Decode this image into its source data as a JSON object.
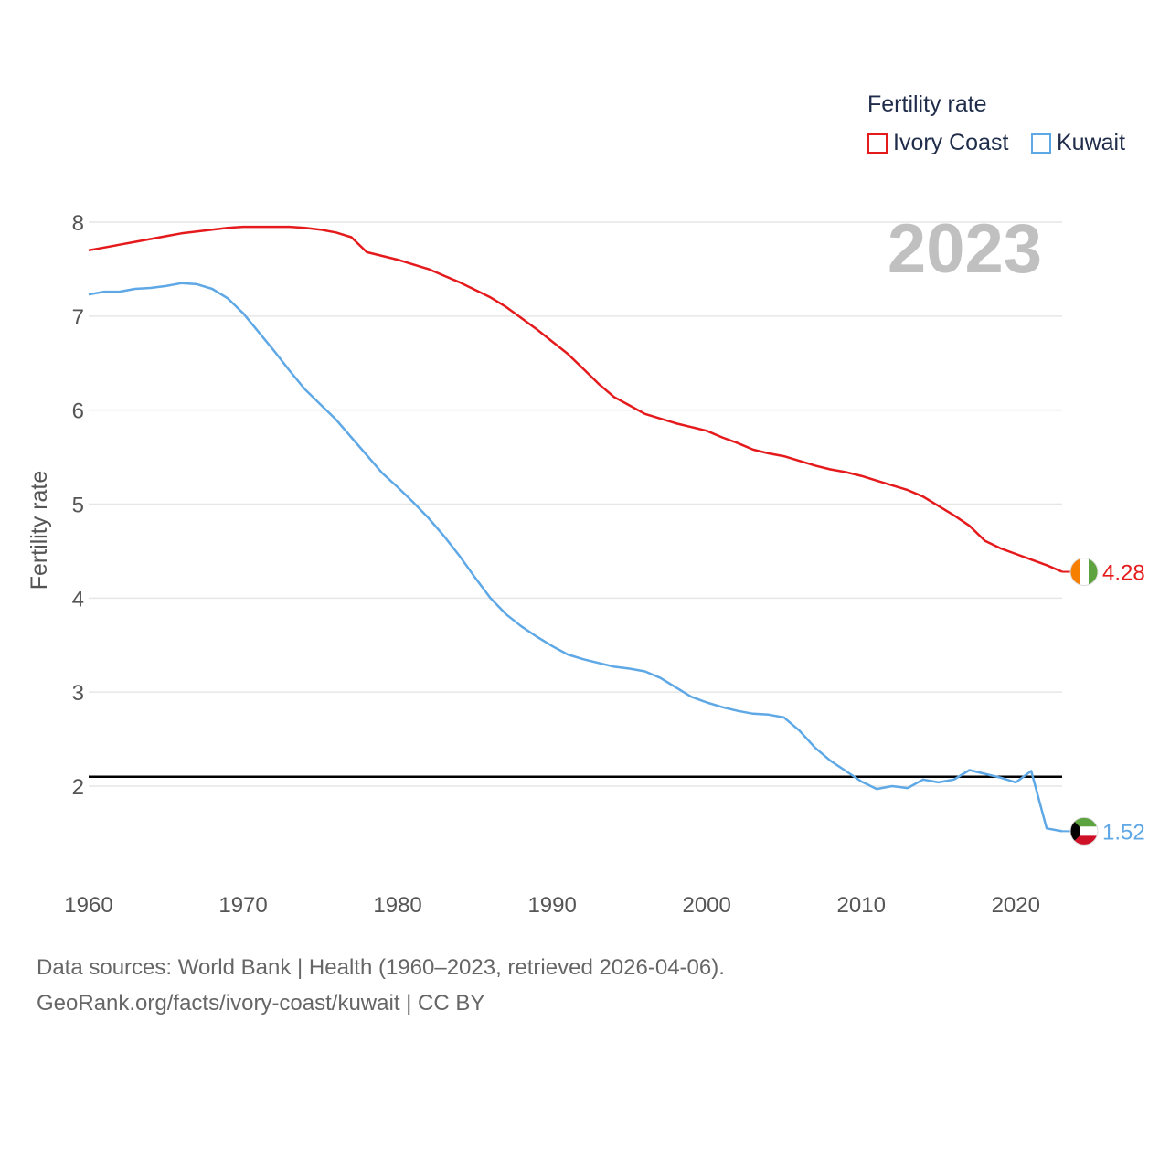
{
  "legend": {
    "title": "Fertility rate",
    "items": [
      {
        "label": "Ivory Coast",
        "color": "#e41a1c"
      },
      {
        "label": "Kuwait",
        "color": "#5fa8e6"
      }
    ]
  },
  "source": {
    "line1": "Data sources: World Bank | Health (1960–2023, retrieved 2026-04-06).",
    "line2": "GeoRank.org/facts/ivory-coast/kuwait | CC BY"
  },
  "chart_data": {
    "type": "line",
    "title": "Fertility rate",
    "year_label": "2023",
    "xlabel": "",
    "ylabel": "Fertility rate",
    "xlim": [
      1960,
      2023
    ],
    "ylim": [
      1.0,
      8.3
    ],
    "x_ticks": [
      1960,
      1970,
      1980,
      1990,
      2000,
      2010,
      2020
    ],
    "y_ticks": [
      2,
      3,
      4,
      5,
      6,
      7,
      8
    ],
    "reference_line": 2.1,
    "x": [
      1960,
      1961,
      1962,
      1963,
      1964,
      1965,
      1966,
      1967,
      1968,
      1969,
      1970,
      1971,
      1972,
      1973,
      1974,
      1975,
      1976,
      1977,
      1978,
      1979,
      1980,
      1981,
      1982,
      1983,
      1984,
      1985,
      1986,
      1987,
      1988,
      1989,
      1990,
      1991,
      1992,
      1993,
      1994,
      1995,
      1996,
      1997,
      1998,
      1999,
      2000,
      2001,
      2002,
      2003,
      2004,
      2005,
      2006,
      2007,
      2008,
      2009,
      2010,
      2011,
      2012,
      2013,
      2014,
      2015,
      2016,
      2017,
      2018,
      2019,
      2020,
      2021,
      2022,
      2023
    ],
    "series": [
      {
        "name": "Ivory Coast",
        "color": "#e41a1c",
        "end_label": "4.28",
        "values": [
          7.7,
          7.73,
          7.76,
          7.79,
          7.82,
          7.85,
          7.88,
          7.9,
          7.92,
          7.94,
          7.95,
          7.95,
          7.95,
          7.95,
          7.94,
          7.92,
          7.89,
          7.84,
          7.68,
          7.64,
          7.6,
          7.55,
          7.5,
          7.43,
          7.36,
          7.28,
          7.2,
          7.1,
          6.98,
          6.86,
          6.73,
          6.6,
          6.44,
          6.28,
          6.14,
          6.05,
          5.96,
          5.91,
          5.86,
          5.82,
          5.78,
          5.71,
          5.65,
          5.58,
          5.54,
          5.51,
          5.46,
          5.41,
          5.37,
          5.34,
          5.3,
          5.25,
          5.2,
          5.15,
          5.08,
          4.98,
          4.88,
          4.77,
          4.61,
          4.53,
          4.47,
          4.41,
          4.35,
          4.28
        ]
      },
      {
        "name": "Kuwait",
        "color": "#5fa8e6",
        "end_label": "1.52",
        "values": [
          7.23,
          7.26,
          7.26,
          7.29,
          7.3,
          7.32,
          7.35,
          7.34,
          7.29,
          7.19,
          7.03,
          6.83,
          6.63,
          6.42,
          6.22,
          6.06,
          5.9,
          5.71,
          5.52,
          5.33,
          5.18,
          5.02,
          4.85,
          4.66,
          4.45,
          4.22,
          4.0,
          3.83,
          3.7,
          3.59,
          3.49,
          3.4,
          3.35,
          3.31,
          3.27,
          3.25,
          3.22,
          3.15,
          3.05,
          2.95,
          2.89,
          2.84,
          2.8,
          2.77,
          2.76,
          2.73,
          2.59,
          2.41,
          2.27,
          2.16,
          2.05,
          1.97,
          2.0,
          1.98,
          2.07,
          2.04,
          2.07,
          2.17,
          2.13,
          2.09,
          2.04,
          2.16,
          1.55,
          1.52
        ]
      }
    ]
  }
}
